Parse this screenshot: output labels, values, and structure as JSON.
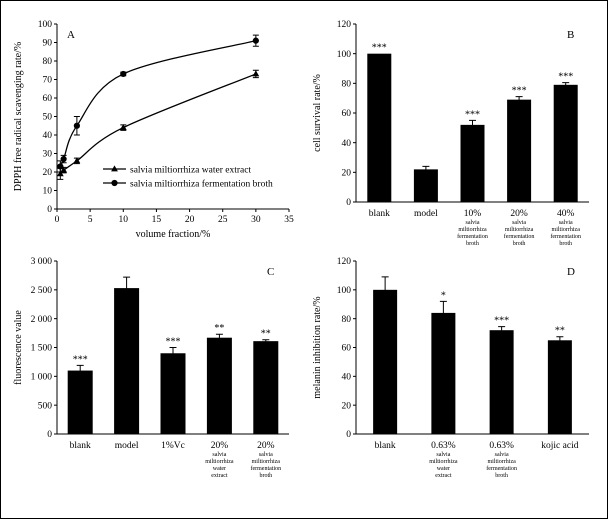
{
  "chart_data": [
    {
      "panel": "A",
      "type": "line",
      "xlabel": "volume fraction/%",
      "ylabel": "DPPH free radical scavenging rate/%",
      "xlim": [
        0,
        35
      ],
      "ylim": [
        0,
        100
      ],
      "xticks": [
        "0",
        "5",
        "10",
        "15",
        "20",
        "25",
        "30",
        "35"
      ],
      "yticks": [
        "0",
        "10",
        "20",
        "30",
        "40",
        "50",
        "60",
        "70",
        "80",
        "90",
        "100"
      ],
      "legend_position": "lower-right",
      "series": [
        {
          "name": "salvia miltiorrhiza water extract",
          "marker": "triangle",
          "x": [
            0.5,
            1,
            3,
            10,
            30
          ],
          "y": [
            19,
            21,
            26,
            44,
            73
          ],
          "err": [
            3,
            1.5,
            1.5,
            1.5,
            2
          ]
        },
        {
          "name": "salvia miltiorrhiza fermentation broth",
          "marker": "circle",
          "x": [
            0.5,
            1,
            3,
            10,
            30
          ],
          "y": [
            23,
            27,
            45,
            73,
            91
          ],
          "err": [
            3,
            2,
            5,
            1,
            3
          ]
        }
      ]
    },
    {
      "panel": "B",
      "type": "bar",
      "ylabel": "cell survival rate/%",
      "ylim": [
        0,
        120
      ],
      "yticks": [
        "0",
        "20",
        "40",
        "60",
        "80",
        "100",
        "120"
      ],
      "categories": [
        {
          "line1": "blank",
          "small": []
        },
        {
          "line1": "model",
          "small": []
        },
        {
          "line1": "10%",
          "small": [
            "salvia",
            "miltiorrhiza",
            "fermentation",
            "broth"
          ]
        },
        {
          "line1": "20%",
          "small": [
            "salvia",
            "miltiorrhiza",
            "fermentation",
            "broth"
          ]
        },
        {
          "line1": "40%",
          "small": [
            "salvia",
            "miltiorrhiza",
            "fermentation",
            "broth"
          ]
        }
      ],
      "values": [
        100,
        22,
        52,
        69,
        79
      ],
      "err": [
        0,
        2,
        3,
        2,
        1.5
      ],
      "significance": [
        "***",
        "",
        "***",
        "***",
        "***"
      ]
    },
    {
      "panel": "C",
      "type": "bar",
      "ylabel": "fluorescence value",
      "ylim": [
        0,
        3000
      ],
      "yticks": [
        "0",
        "500",
        "1 000",
        "1 500",
        "2 000",
        "2 500",
        "3 000"
      ],
      "categories": [
        {
          "line1": "blank",
          "small": []
        },
        {
          "line1": "model",
          "small": []
        },
        {
          "line1": "1%Vc",
          "small": []
        },
        {
          "line1": "20%",
          "small": [
            "salvia",
            "miltiorrhiza",
            "water",
            "extract"
          ]
        },
        {
          "line1": "20%",
          "small": [
            "salvia",
            "miltiorrhiza",
            "fermentation",
            "broth"
          ]
        }
      ],
      "values": [
        1100,
        2530,
        1400,
        1670,
        1610
      ],
      "err": [
        90,
        190,
        100,
        60,
        25
      ],
      "significance": [
        "***",
        "",
        "***",
        "**",
        "**"
      ]
    },
    {
      "panel": "D",
      "type": "bar",
      "ylabel": "melanin inhibition rate/%",
      "ylim": [
        0,
        120
      ],
      "yticks": [
        "0",
        "20",
        "40",
        "60",
        "80",
        "100",
        "120"
      ],
      "categories": [
        {
          "line1": "blank",
          "small": []
        },
        {
          "line1": "0.63%",
          "small": [
            "salvia",
            "miltiorrhiza",
            "water",
            "extract"
          ]
        },
        {
          "line1": "0.63%",
          "small": [
            "salvia",
            "miltiorrhiza",
            "fermentation",
            "broth"
          ]
        },
        {
          "line1": "kojic acid",
          "small": []
        }
      ],
      "values": [
        100,
        84,
        72,
        65
      ],
      "err": [
        9,
        8,
        2.5,
        2.5
      ],
      "significance": [
        "",
        "*",
        "***",
        "**"
      ]
    }
  ]
}
